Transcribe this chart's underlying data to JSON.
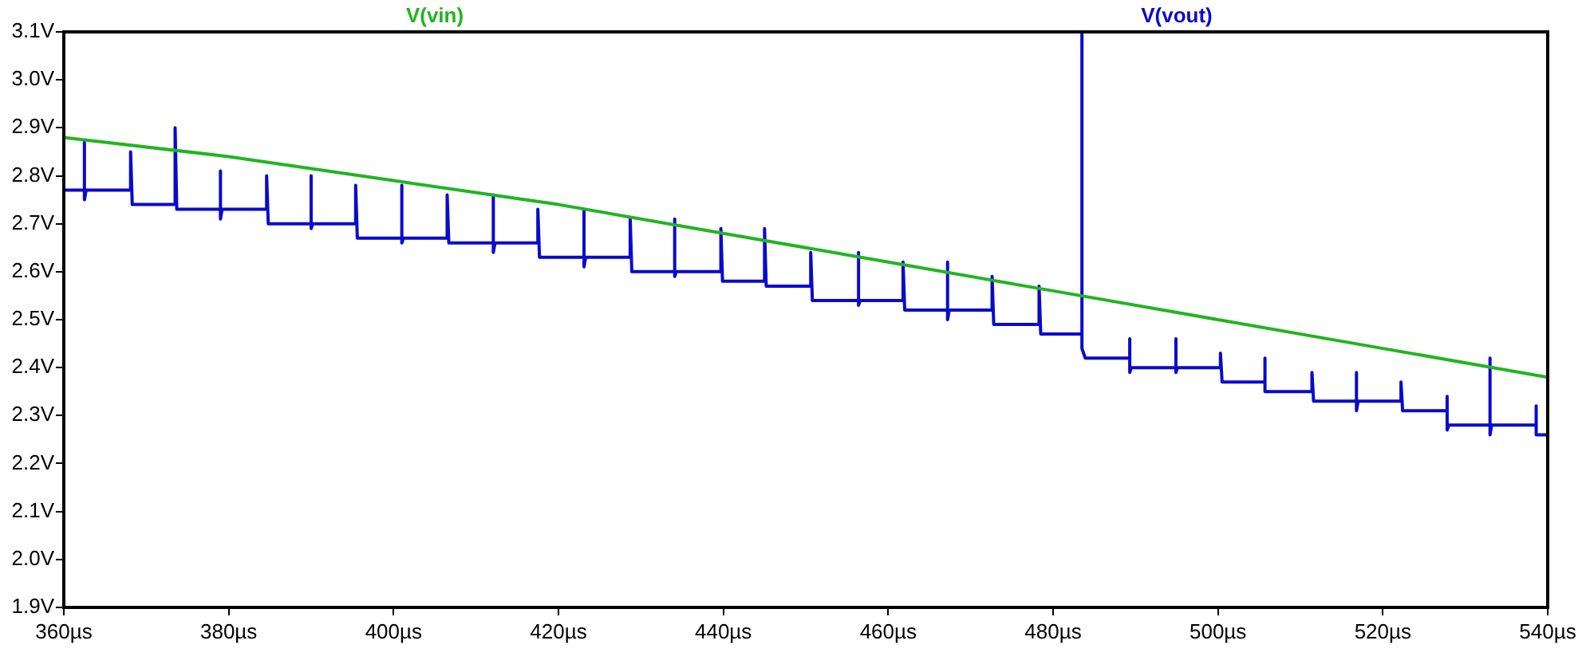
{
  "chart_data": {
    "type": "line",
    "xlim": [
      360,
      540
    ],
    "xticks": [
      {
        "value": 360,
        "label": "360µs"
      },
      {
        "value": 380,
        "label": "380µs"
      },
      {
        "value": 400,
        "label": "400µs"
      },
      {
        "value": 420,
        "label": "420µs"
      },
      {
        "value": 440,
        "label": "440µs"
      },
      {
        "value": 460,
        "label": "460µs"
      },
      {
        "value": 480,
        "label": "480µs"
      },
      {
        "value": 500,
        "label": "500µs"
      },
      {
        "value": 520,
        "label": "520µs"
      },
      {
        "value": 540,
        "label": "540µs"
      }
    ],
    "ylim": [
      1.9,
      3.1
    ],
    "yticks": [
      {
        "value": 1.9,
        "label": "1.9V"
      },
      {
        "value": 2.0,
        "label": "2.0V"
      },
      {
        "value": 2.1,
        "label": "2.1V"
      },
      {
        "value": 2.2,
        "label": "2.2V"
      },
      {
        "value": 2.3,
        "label": "2.3V"
      },
      {
        "value": 2.4,
        "label": "2.4V"
      },
      {
        "value": 2.5,
        "label": "2.5V"
      },
      {
        "value": 2.6,
        "label": "2.6V"
      },
      {
        "value": 2.7,
        "label": "2.7V"
      },
      {
        "value": 2.8,
        "label": "2.8V"
      },
      {
        "value": 2.9,
        "label": "2.9V"
      },
      {
        "value": 3.0,
        "label": "3.0V"
      },
      {
        "value": 3.1,
        "label": "3.1V"
      }
    ],
    "grid": false,
    "legend": "top",
    "marker": "none",
    "line_style": "solid",
    "series": [
      {
        "name": "V(vin)",
        "color": "#22b422",
        "x": [
          360,
          380,
          400,
          420,
          440,
          460,
          480,
          500,
          520,
          540
        ],
        "values": [
          2.88,
          2.84,
          2.79,
          2.74,
          2.68,
          2.62,
          2.56,
          2.5,
          2.44,
          2.38
        ]
      },
      {
        "name": "V(vout)",
        "color": "#0a0acc",
        "x": [
          360,
          362.5,
          362.5,
          362.5,
          362.7,
          368.1,
          368.1,
          368.3,
          373.5,
          373.5,
          373.7,
          379.0,
          379.0,
          379.0,
          379.2,
          384.6,
          384.6,
          384.8,
          390.0,
          390.0,
          390.0,
          390.2,
          395.4,
          395.4,
          395.6,
          401.0,
          401.0,
          401.0,
          401.2,
          406.5,
          406.5,
          406.7,
          412.1,
          412.1,
          412.1,
          412.3,
          417.5,
          417.5,
          417.7,
          423.1,
          423.1,
          423.1,
          423.3,
          428.7,
          428.7,
          428.9,
          434.1,
          434.1,
          434.1,
          434.3,
          439.7,
          439.7,
          439.9,
          445.0,
          445.0,
          445.2,
          450.6,
          450.6,
          450.8,
          456.4,
          456.4,
          456.4,
          456.6,
          461.8,
          461.8,
          462.0,
          467.2,
          467.2,
          467.2,
          467.4,
          472.6,
          472.6,
          472.8,
          478.3,
          478.3,
          478.5,
          483.5,
          483.5,
          483.5,
          483.9,
          489.3,
          489.3,
          489.3,
          489.5,
          494.9,
          494.9,
          494.9,
          495.1,
          500.3,
          500.3,
          500.5,
          505.7,
          505.7,
          505.7,
          505.9,
          511.4,
          511.4,
          511.6,
          516.8,
          516.8,
          516.8,
          517.0,
          522.2,
          522.2,
          522.4,
          527.8,
          527.8,
          527.8,
          528.0,
          533.0,
          533.0,
          533.0,
          533.2,
          538.6,
          538.6,
          538.6,
          538.8,
          540
        ],
        "values": [
          2.77,
          2.77,
          2.87,
          2.75,
          2.77,
          2.77,
          2.85,
          2.74,
          2.74,
          2.9,
          2.73,
          2.73,
          2.81,
          2.71,
          2.73,
          2.73,
          2.8,
          2.7,
          2.7,
          2.8,
          2.69,
          2.7,
          2.7,
          2.78,
          2.67,
          2.67,
          2.78,
          2.66,
          2.67,
          2.67,
          2.76,
          2.66,
          2.66,
          2.76,
          2.64,
          2.66,
          2.66,
          2.73,
          2.63,
          2.63,
          2.73,
          2.61,
          2.63,
          2.63,
          2.71,
          2.6,
          2.6,
          2.71,
          2.59,
          2.6,
          2.6,
          2.69,
          2.58,
          2.58,
          2.69,
          2.57,
          2.57,
          2.64,
          2.54,
          2.54,
          2.64,
          2.53,
          2.54,
          2.54,
          2.62,
          2.52,
          2.52,
          2.62,
          2.5,
          2.52,
          2.52,
          2.59,
          2.49,
          2.49,
          2.57,
          2.47,
          2.47,
          3.1,
          2.44,
          2.42,
          2.42,
          2.46,
          2.39,
          2.4,
          2.4,
          2.46,
          2.39,
          2.4,
          2.4,
          2.43,
          2.37,
          2.37,
          2.42,
          2.35,
          2.35,
          2.35,
          2.39,
          2.33,
          2.33,
          2.39,
          2.31,
          2.33,
          2.33,
          2.37,
          2.31,
          2.31,
          2.34,
          2.27,
          2.28,
          2.28,
          2.42,
          2.26,
          2.28,
          2.28,
          2.32,
          2.26,
          2.26,
          2.26
        ]
      }
    ]
  }
}
